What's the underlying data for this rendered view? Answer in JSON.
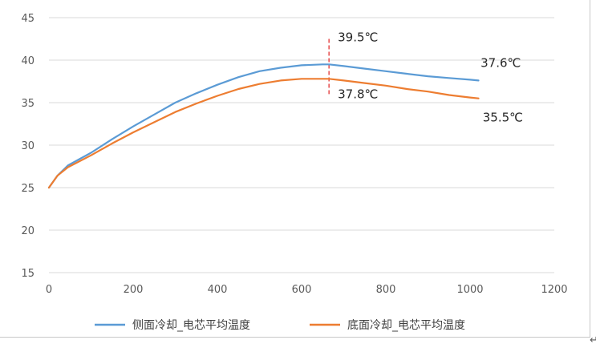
{
  "chart_data": {
    "type": "line",
    "title": "",
    "xlabel": "",
    "ylabel": "",
    "xlim": [
      0,
      1200
    ],
    "ylim": [
      15,
      45
    ],
    "xticks": [
      "0",
      "200",
      "400",
      "600",
      "800",
      "1000",
      "1200"
    ],
    "yticks": [
      "15",
      "20",
      "25",
      "30",
      "35",
      "40",
      "45"
    ],
    "grid": "horizontal",
    "legend_position": "bottom",
    "series": [
      {
        "name": "侧面冷却_电芯平均温度",
        "color": "#5b9bd5",
        "x": [
          0,
          20,
          45,
          100,
          150,
          200,
          250,
          300,
          350,
          400,
          450,
          500,
          550,
          600,
          650,
          665,
          700,
          750,
          800,
          850,
          900,
          950,
          1000,
          1020
        ],
        "y": [
          25.0,
          26.4,
          27.6,
          29.1,
          30.7,
          32.2,
          33.6,
          35.0,
          36.1,
          37.1,
          38.0,
          38.7,
          39.1,
          39.4,
          39.5,
          39.5,
          39.3,
          39.0,
          38.7,
          38.4,
          38.1,
          37.9,
          37.7,
          37.6
        ]
      },
      {
        "name": "底面冷却_电芯平均温度",
        "color": "#ed7d31",
        "x": [
          0,
          20,
          45,
          100,
          150,
          200,
          250,
          300,
          350,
          400,
          450,
          500,
          550,
          600,
          650,
          665,
          700,
          750,
          800,
          850,
          900,
          950,
          1000,
          1020
        ],
        "y": [
          25.0,
          26.4,
          27.4,
          28.8,
          30.2,
          31.5,
          32.7,
          33.9,
          34.9,
          35.8,
          36.6,
          37.2,
          37.6,
          37.8,
          37.8,
          37.8,
          37.6,
          37.3,
          37.0,
          36.6,
          36.3,
          35.9,
          35.6,
          35.5
        ]
      }
    ],
    "marker_line": {
      "x": 665,
      "color": "#e02020",
      "style": "dashed"
    },
    "annotations": [
      {
        "text": "39.5℃",
        "x": 686,
        "y": 42.2
      },
      {
        "text": "37.8℃",
        "x": 686,
        "y": 35.5
      },
      {
        "text": "37.6℃",
        "x": 1025,
        "y": 39.2
      },
      {
        "text": "35.5℃",
        "x": 1030,
        "y": 32.8
      }
    ]
  },
  "page": {
    "corner_mark": "↵"
  }
}
